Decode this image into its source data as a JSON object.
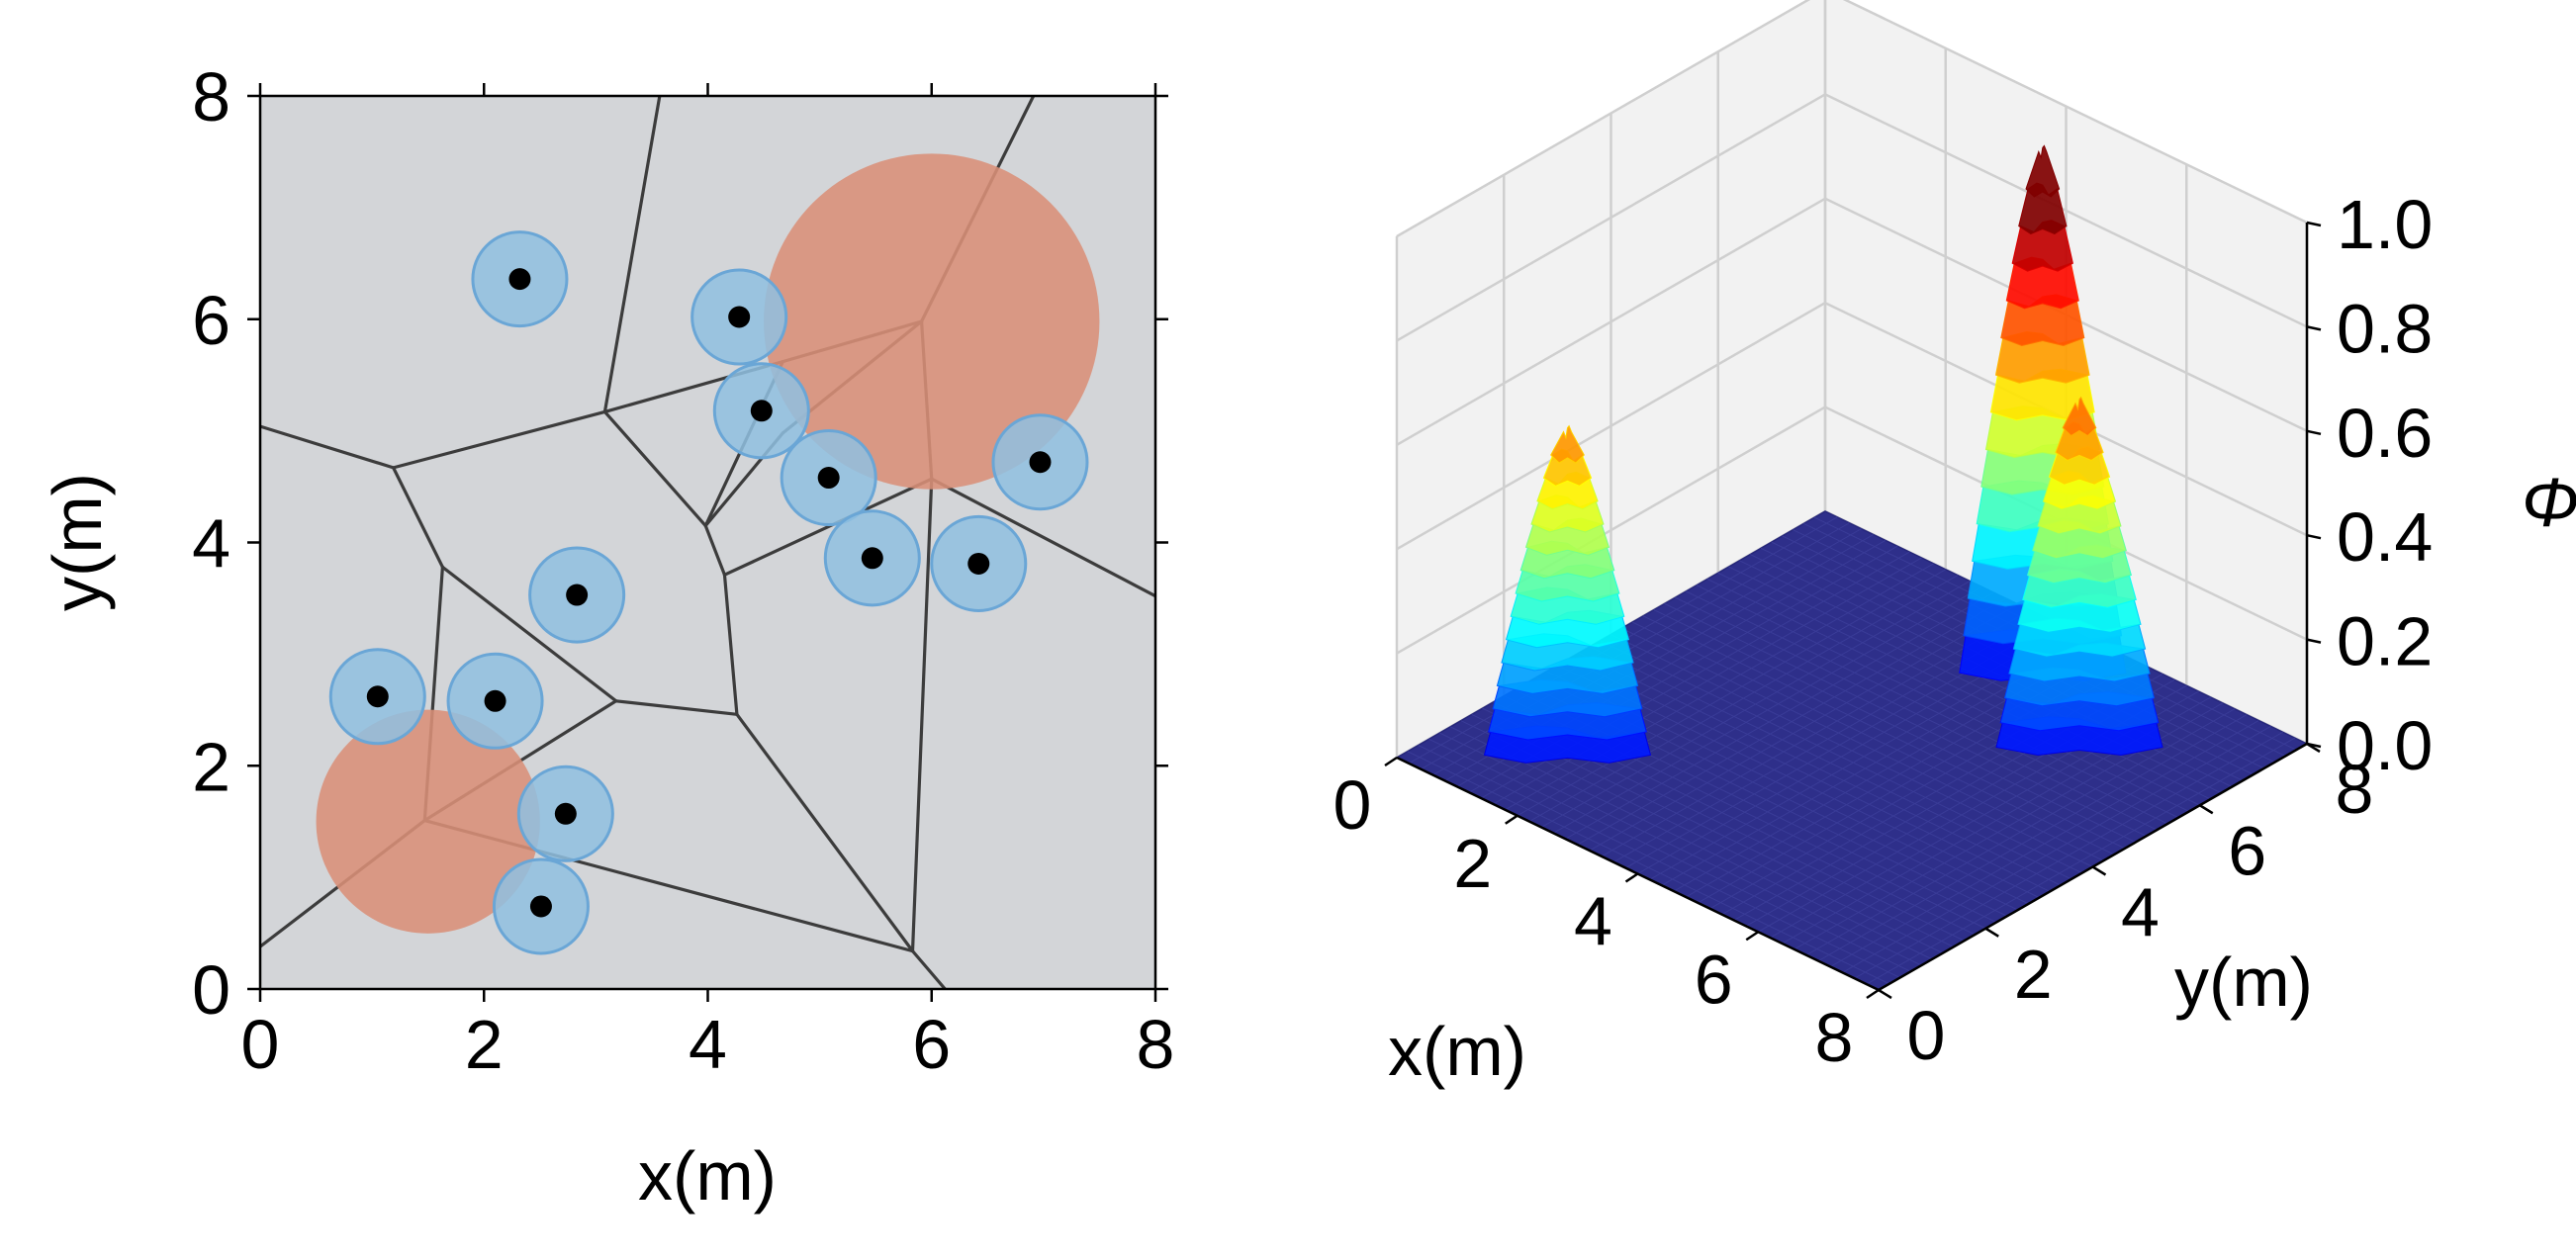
{
  "chart_data": [
    {
      "type": "scatter",
      "subtype": "voronoi-coverage-map",
      "xlabel": "x(m)",
      "ylabel": "y(m)",
      "xlim": [
        0,
        8
      ],
      "ylim": [
        0,
        8
      ],
      "xticks": [
        "0",
        "2",
        "4",
        "6",
        "8"
      ],
      "yticks": [
        "0",
        "2",
        "4",
        "6",
        "8"
      ],
      "grid": false,
      "colors": {
        "background": "#d3d5d8",
        "edges": "#3c3c3c",
        "sensor_disk": "#8fc0e0",
        "sensor_disk_edge": "#6aa6d6",
        "target_disk": "#d98f78",
        "agent": "#000000"
      },
      "agents": [
        {
          "x": 2.32,
          "y": 6.36
        },
        {
          "x": 4.28,
          "y": 6.02
        },
        {
          "x": 4.48,
          "y": 5.18
        },
        {
          "x": 5.08,
          "y": 4.58
        },
        {
          "x": 6.97,
          "y": 4.72
        },
        {
          "x": 5.47,
          "y": 3.86
        },
        {
          "x": 6.42,
          "y": 3.81
        },
        {
          "x": 2.83,
          "y": 3.53
        },
        {
          "x": 1.05,
          "y": 2.62
        },
        {
          "x": 2.1,
          "y": 2.58
        },
        {
          "x": 2.73,
          "y": 1.57
        },
        {
          "x": 2.51,
          "y": 0.74
        }
      ],
      "sensor_radius": 0.42,
      "targets": [
        {
          "x": 6.0,
          "y": 5.98,
          "r": 1.5
        },
        {
          "x": 1.5,
          "y": 1.5,
          "r": 1.0
        }
      ],
      "voronoi_edges": [
        [
          [
            3.57,
            8.0
          ],
          [
            3.08,
            5.17
          ]
        ],
        [
          [
            3.08,
            5.17
          ],
          [
            1.19,
            4.67
          ]
        ],
        [
          [
            1.19,
            4.67
          ],
          [
            0.0,
            5.04
          ]
        ],
        [
          [
            1.19,
            4.67
          ],
          [
            1.63,
            3.78
          ]
        ],
        [
          [
            1.63,
            3.78
          ],
          [
            1.47,
            1.51
          ]
        ],
        [
          [
            1.47,
            1.51
          ],
          [
            0.0,
            0.38
          ]
        ],
        [
          [
            1.47,
            1.51
          ],
          [
            3.18,
            2.58
          ]
        ],
        [
          [
            1.63,
            3.78
          ],
          [
            3.18,
            2.58
          ]
        ],
        [
          [
            3.18,
            2.58
          ],
          [
            4.26,
            2.46
          ]
        ],
        [
          [
            4.26,
            2.46
          ],
          [
            4.15,
            3.71
          ]
        ],
        [
          [
            4.15,
            3.71
          ],
          [
            3.98,
            4.15
          ]
        ],
        [
          [
            3.98,
            4.15
          ],
          [
            3.08,
            5.17
          ]
        ],
        [
          [
            3.08,
            5.17
          ],
          [
            4.67,
            5.62
          ]
        ],
        [
          [
            4.67,
            5.62
          ],
          [
            5.91,
            5.98
          ]
        ],
        [
          [
            5.91,
            5.98
          ],
          [
            6.91,
            8.0
          ]
        ],
        [
          [
            5.91,
            5.98
          ],
          [
            6.0,
            4.57
          ]
        ],
        [
          [
            6.0,
            4.57
          ],
          [
            8.0,
            3.52
          ]
        ],
        [
          [
            6.0,
            4.57
          ],
          [
            4.15,
            3.71
          ]
        ],
        [
          [
            3.98,
            4.15
          ],
          [
            4.67,
            5.62
          ]
        ],
        [
          [
            5.91,
            5.98
          ],
          [
            4.67,
            4.98
          ]
        ],
        [
          [
            4.67,
            4.98
          ],
          [
            3.98,
            4.15
          ]
        ],
        [
          [
            4.26,
            2.46
          ],
          [
            5.83,
            0.34
          ]
        ],
        [
          [
            5.83,
            0.34
          ],
          [
            6.0,
            4.57
          ]
        ],
        [
          [
            5.83,
            0.34
          ],
          [
            1.47,
            1.51
          ]
        ],
        [
          [
            5.83,
            0.34
          ],
          [
            6.12,
            0.0
          ]
        ]
      ]
    },
    {
      "type": "surface3d",
      "colormap": "jet",
      "xlabel": "x(m)",
      "ylabel": "y(m)",
      "zlabel": "Φ",
      "xlim": [
        0,
        8
      ],
      "ylim": [
        0,
        8
      ],
      "zlim": [
        0.0,
        1.0
      ],
      "xticks": [
        "0",
        "2",
        "4",
        "6",
        "8"
      ],
      "yticks": [
        "0",
        "2",
        "4",
        "6",
        "8"
      ],
      "zticks": [
        "0.0",
        "0.2",
        "0.4",
        "0.6",
        "0.8",
        "1.0"
      ],
      "grid": true,
      "pane_color": "#f2f2f2",
      "floor_color": "#2e2f8a",
      "peaks": [
        {
          "x": 1.5,
          "y": 1.5,
          "height": 0.62
        },
        {
          "x": 6.0,
          "y": 6.0,
          "height": 0.66
        },
        {
          "x": 4.5,
          "y": 7.0,
          "height": 1.0
        }
      ]
    }
  ]
}
